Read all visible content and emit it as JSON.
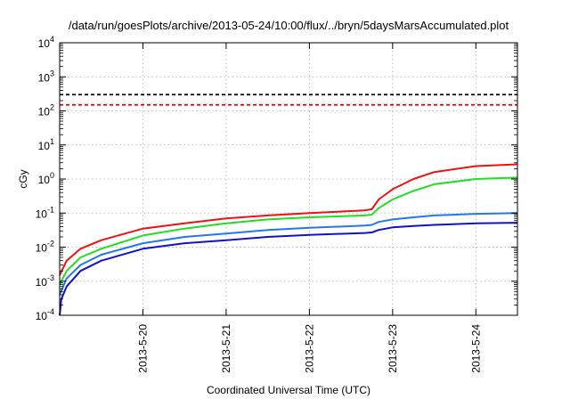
{
  "chart_data": {
    "type": "line",
    "title": "/data/run/goesPlots/archive/2013-05-24/10:00/flux/../bryn/5daysMarsAccumulated.plot",
    "xlabel": "Coordinated Universal Time (UTC)",
    "ylabel": "cGy",
    "y_scale": "log",
    "xlim": [
      "2013-05-19 00:00",
      "2013-05-24 12:00"
    ],
    "ylim_exponents": [
      -4,
      4
    ],
    "x_ticks": [
      {
        "date": "2013-05-20 00:00",
        "label": "2013-5-20"
      },
      {
        "date": "2013-05-21 00:00",
        "label": "2013-5-21"
      },
      {
        "date": "2013-05-22 00:00",
        "label": "2013-5-22"
      },
      {
        "date": "2013-05-23 00:00",
        "label": "2013-5-23"
      },
      {
        "date": "2013-05-24 00:00",
        "label": "2013-5-24"
      }
    ],
    "y_ticks": [
      {
        "base": "10",
        "exp": "-4"
      },
      {
        "base": "10",
        "exp": "-3"
      },
      {
        "base": "10",
        "exp": "-2"
      },
      {
        "base": "10",
        "exp": "-1"
      },
      {
        "base": "10",
        "exp": "0"
      },
      {
        "base": "10",
        "exp": "1"
      },
      {
        "base": "10",
        "exp": "2"
      },
      {
        "base": "10",
        "exp": "3"
      },
      {
        "base": "10",
        "exp": "4"
      }
    ],
    "grid": true,
    "reference_lines": [
      {
        "y": 300,
        "color": "#000000",
        "style": "dashed"
      },
      {
        "y": 150,
        "color": "#ee0000",
        "style": "dashed"
      }
    ],
    "series": [
      {
        "color": "#ee1111",
        "points": [
          [
            "2013-05-19 00:00",
            0.0015
          ],
          [
            "2013-05-19 02:00",
            0.004
          ],
          [
            "2013-05-19 06:00",
            0.009
          ],
          [
            "2013-05-19 12:00",
            0.016
          ],
          [
            "2013-05-20 00:00",
            0.035
          ],
          [
            "2013-05-20 12:00",
            0.05
          ],
          [
            "2013-05-21 00:00",
            0.07
          ],
          [
            "2013-05-21 12:00",
            0.085
          ],
          [
            "2013-05-22 00:00",
            0.1
          ],
          [
            "2013-05-22 16:00",
            0.12
          ],
          [
            "2013-05-22 18:00",
            0.13
          ],
          [
            "2013-05-22 20:00",
            0.25
          ],
          [
            "2013-05-23 00:00",
            0.5
          ],
          [
            "2013-05-23 06:00",
            1.0
          ],
          [
            "2013-05-23 12:00",
            1.6
          ],
          [
            "2013-05-24 00:00",
            2.4
          ],
          [
            "2013-05-24 12:00",
            2.7
          ]
        ]
      },
      {
        "color": "#22dd22",
        "points": [
          [
            "2013-05-19 00:00",
            0.0008
          ],
          [
            "2013-05-19 02:00",
            0.002
          ],
          [
            "2013-05-19 06:00",
            0.005
          ],
          [
            "2013-05-19 12:00",
            0.009
          ],
          [
            "2013-05-20 00:00",
            0.022
          ],
          [
            "2013-05-20 12:00",
            0.035
          ],
          [
            "2013-05-21 00:00",
            0.05
          ],
          [
            "2013-05-21 12:00",
            0.065
          ],
          [
            "2013-05-22 00:00",
            0.075
          ],
          [
            "2013-05-22 16:00",
            0.085
          ],
          [
            "2013-05-22 18:00",
            0.09
          ],
          [
            "2013-05-22 20:00",
            0.14
          ],
          [
            "2013-05-23 00:00",
            0.25
          ],
          [
            "2013-05-23 06:00",
            0.45
          ],
          [
            "2013-05-23 12:00",
            0.7
          ],
          [
            "2013-05-24 00:00",
            1.0
          ],
          [
            "2013-05-24 12:00",
            1.1
          ]
        ]
      },
      {
        "color": "#2277ee",
        "points": [
          [
            "2013-05-19 00:00",
            0.0004
          ],
          [
            "2013-05-19 02:00",
            0.0012
          ],
          [
            "2013-05-19 06:00",
            0.003
          ],
          [
            "2013-05-19 12:00",
            0.006
          ],
          [
            "2013-05-20 00:00",
            0.013
          ],
          [
            "2013-05-20 12:00",
            0.02
          ],
          [
            "2013-05-21 00:00",
            0.025
          ],
          [
            "2013-05-21 12:00",
            0.032
          ],
          [
            "2013-05-22 00:00",
            0.037
          ],
          [
            "2013-05-22 16:00",
            0.043
          ],
          [
            "2013-05-22 18:00",
            0.045
          ],
          [
            "2013-05-22 20:00",
            0.055
          ],
          [
            "2013-05-23 00:00",
            0.065
          ],
          [
            "2013-05-23 06:00",
            0.075
          ],
          [
            "2013-05-23 12:00",
            0.085
          ],
          [
            "2013-05-24 00:00",
            0.095
          ],
          [
            "2013-05-24 12:00",
            0.1
          ]
        ]
      },
      {
        "color": "#1111cc",
        "points": [
          [
            "2013-05-19 00:00",
            0.0001
          ],
          [
            "2013-05-19 00:30",
            0.0003
          ],
          [
            "2013-05-19 02:00",
            0.0007
          ],
          [
            "2013-05-19 06:00",
            0.002
          ],
          [
            "2013-05-19 12:00",
            0.004
          ],
          [
            "2013-05-20 00:00",
            0.009
          ],
          [
            "2013-05-20 12:00",
            0.013
          ],
          [
            "2013-05-21 00:00",
            0.016
          ],
          [
            "2013-05-21 12:00",
            0.02
          ],
          [
            "2013-05-22 00:00",
            0.023
          ],
          [
            "2013-05-22 16:00",
            0.026
          ],
          [
            "2013-05-22 18:00",
            0.027
          ],
          [
            "2013-05-22 20:00",
            0.032
          ],
          [
            "2013-05-23 00:00",
            0.038
          ],
          [
            "2013-05-23 06:00",
            0.042
          ],
          [
            "2013-05-23 12:00",
            0.045
          ],
          [
            "2013-05-24 00:00",
            0.05
          ],
          [
            "2013-05-24 12:00",
            0.052
          ]
        ]
      }
    ]
  }
}
